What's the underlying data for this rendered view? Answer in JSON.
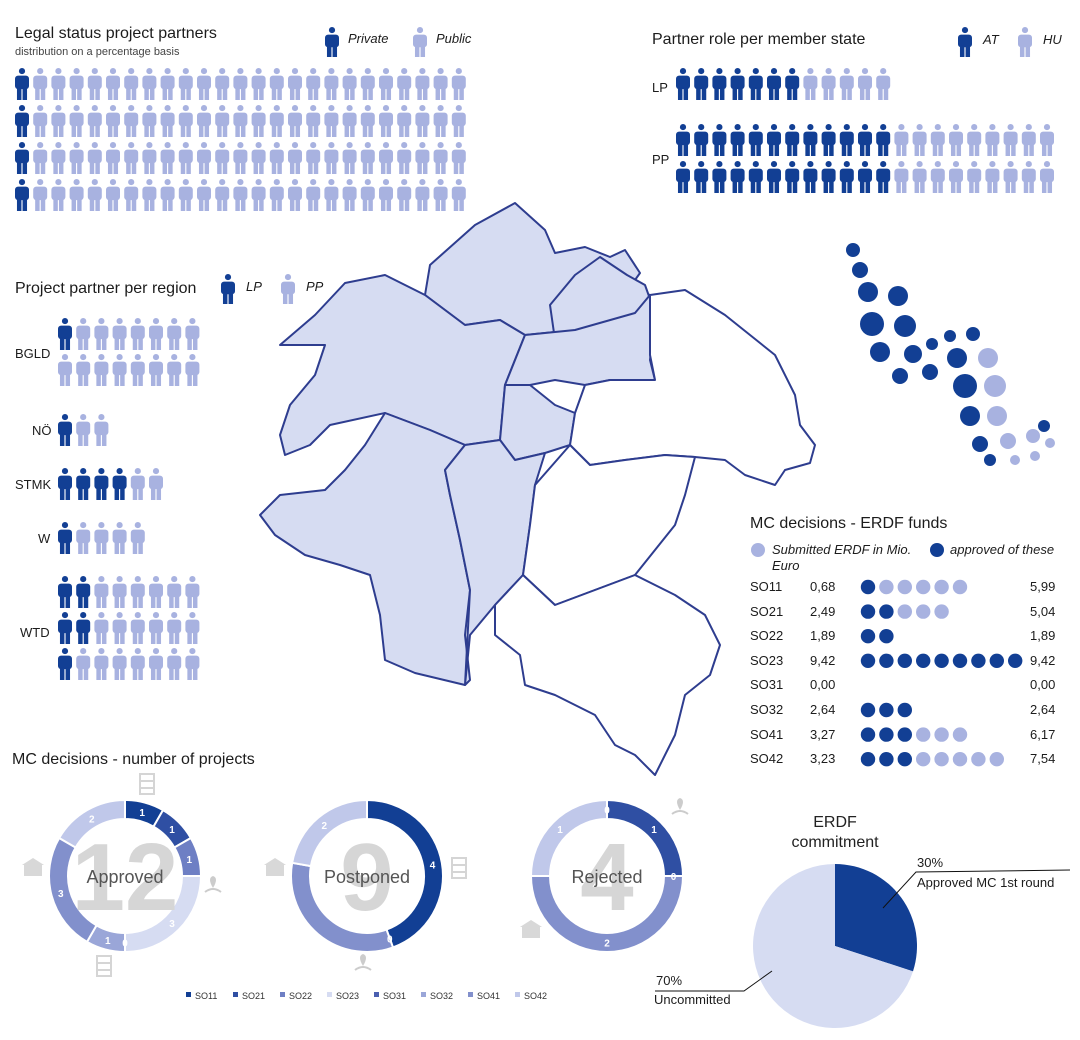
{
  "colors": {
    "dark": "#123f94",
    "mid": "#6e7fc4",
    "light": "#a8b2e0",
    "pale": "#d6dcf2",
    "grey": "#cfcfcf"
  },
  "legal_status": {
    "title": "Legal status project partners",
    "subtitle": "distribution on a percentage basis",
    "legend": [
      "Private",
      "Public"
    ],
    "chart_data": {
      "type": "pictogram",
      "categories": [
        "Private",
        "Public"
      ],
      "values": [
        4,
        96
      ]
    }
  },
  "partner_role": {
    "title": "Partner role per member state",
    "legend": [
      "AT",
      "HU"
    ],
    "chart_data": {
      "type": "pictogram",
      "categories": [
        "LP",
        "PP"
      ],
      "series": [
        {
          "name": "AT",
          "values": [
            7,
            24
          ]
        },
        {
          "name": "HU",
          "values": [
            5,
            18
          ]
        }
      ]
    }
  },
  "partner_region": {
    "title": "Project partner per region",
    "legend": [
      "LP",
      "PP"
    ],
    "chart_data": {
      "type": "pictogram",
      "categories": [
        "BGLD",
        "NÖ",
        "STMK",
        "W",
        "WTD"
      ],
      "series": [
        {
          "name": "LP",
          "values": [
            1,
            1,
            4,
            1,
            5
          ]
        },
        {
          "name": "PP",
          "values": [
            15,
            2,
            2,
            4,
            19
          ]
        }
      ]
    }
  },
  "erdf_funds": {
    "title": "MC decisions - ERDF funds",
    "legend": [
      "Submitted ERDF in Mio. Euro",
      "approved of these"
    ],
    "chart_data": {
      "type": "dot",
      "categories": [
        "SO11",
        "SO21",
        "SO22",
        "SO23",
        "SO31",
        "SO32",
        "SO41",
        "SO42"
      ],
      "series": [
        {
          "name": "approved of these",
          "values": [
            "0,68",
            "2,49",
            "1,89",
            "9,42",
            "0,00",
            "2,64",
            "3,27",
            "3,23"
          ]
        },
        {
          "name": "Submitted ERDF in Mio. Euro",
          "values": [
            "5,99",
            "5,04",
            "1,89",
            "9,42",
            "0,00",
            "2,64",
            "6,17",
            "7,54"
          ]
        }
      ]
    }
  },
  "mc_projects": {
    "title": "MC decisions - number of projects",
    "legend": [
      "SO11",
      "SO21",
      "SO22",
      "SO23",
      "SO31",
      "SO32",
      "SO41",
      "SO42"
    ],
    "chart_data": [
      {
        "type": "donut",
        "total": "12",
        "label": "Approved",
        "values": [
          1,
          1,
          1,
          3,
          0,
          1,
          3,
          2
        ],
        "value_labels": [
          "1",
          "1",
          "1",
          "3",
          "0",
          "1",
          "3",
          "2"
        ]
      },
      {
        "type": "donut",
        "total": "9",
        "label": "Postponed",
        "values": [
          4,
          0,
          0,
          0,
          0,
          0,
          3,
          2
        ],
        "value_labels": [
          "4",
          "0",
          "",
          "",
          "",
          "",
          "",
          "2"
        ]
      },
      {
        "type": "donut",
        "total": "4",
        "label": "Rejected",
        "values": [
          0,
          1,
          0,
          0,
          0,
          0,
          2,
          1
        ],
        "value_labels": [
          "0",
          "1",
          "0",
          "",
          "",
          "",
          "2",
          "1"
        ]
      }
    ]
  },
  "commitment": {
    "title_line1": "ERDF",
    "title_line2": "commitment",
    "chart_data": {
      "type": "pie",
      "categories": [
        "Approved MC 1st round",
        "Uncommitted"
      ],
      "values": [
        30,
        70
      ],
      "value_labels": [
        "30%",
        "70%"
      ]
    }
  }
}
